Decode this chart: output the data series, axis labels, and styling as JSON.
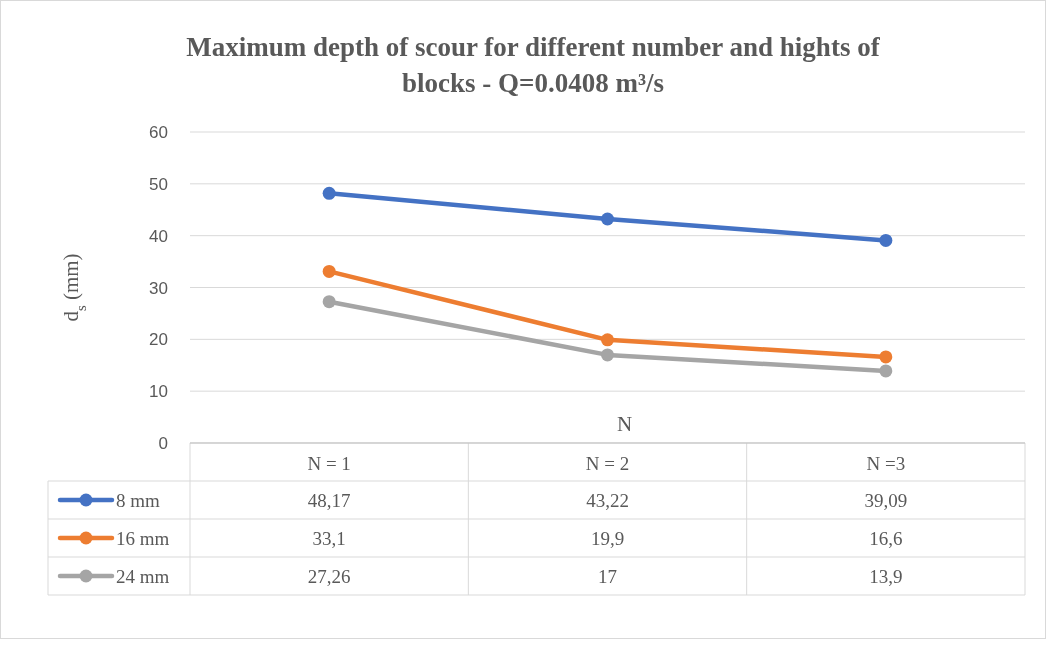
{
  "chart_data": {
    "type": "line",
    "title": "Maximum depth of scour for different number and hights of blocks - Q=0.0408 m³/s",
    "xlabel": "N",
    "ylabel": "d$_{s}$ (mm)",
    "categories": [
      "N = 1",
      "N = 2",
      "N =3"
    ],
    "ylim": [
      0,
      60
    ],
    "yticks": [
      0,
      10,
      20,
      30,
      40,
      50,
      60
    ],
    "grid": "y",
    "legend": "bottom",
    "marker": "circle",
    "line_style": "solid",
    "series": [
      {
        "name": "8 mm",
        "color": "#4472c4",
        "values": [
          48.17,
          43.22,
          39.09
        ],
        "value_labels": [
          "48,17",
          "43,22",
          "39,09"
        ]
      },
      {
        "name": "16 mm",
        "color": "#ed7d31",
        "values": [
          33.1,
          19.9,
          16.6
        ],
        "value_labels": [
          "33,1",
          "19,9",
          "16,6"
        ]
      },
      {
        "name": "24 mm",
        "color": "#a5a5a5",
        "values": [
          27.26,
          17,
          13.9
        ],
        "value_labels": [
          "27,26",
          "17",
          "13,9"
        ]
      }
    ]
  }
}
